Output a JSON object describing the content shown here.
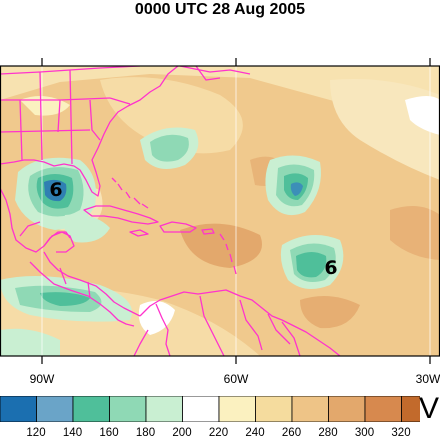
{
  "title": "0000 UTC 28 Aug 2005",
  "longitude_labels": [
    "90W",
    "60W",
    "30W"
  ],
  "colorbar": {
    "labels": [
      "120",
      "140",
      "160",
      "180",
      "200",
      "220",
      "240",
      "260",
      "280",
      "300",
      "320"
    ],
    "colors": [
      "#1b6fb0",
      "#6aa4c8",
      "#4fbf9a",
      "#8fd9b5",
      "#c9efd2",
      "#ffffff",
      "#fbf1c0",
      "#f5dc9e",
      "#eec487",
      "#e3a86c",
      "#d7894e",
      "#c26a2c"
    ],
    "variable_letter": "V"
  },
  "map_colors": {
    "base": "#f0c98d",
    "coast": "#ff33cc",
    "grid": "#ffffff"
  },
  "hurricane_symbol": "6"
}
